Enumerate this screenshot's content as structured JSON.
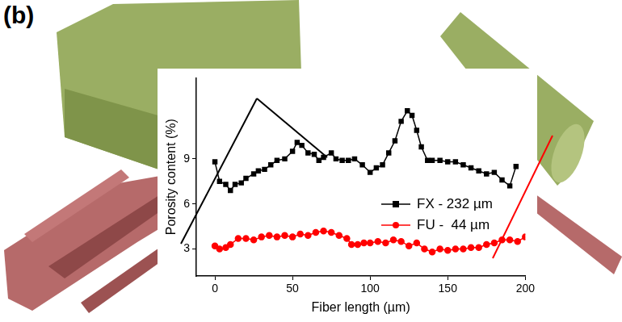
{
  "chart_data": {
    "type": "line",
    "title": "(b)",
    "x_label": "Fiber length (µm)",
    "y_label": "Porosity content (%)",
    "xlim": [
      -12,
      200
    ],
    "xticks": [
      0,
      50,
      100,
      150,
      200
    ],
    "ylim": [
      1.2,
      14.4
    ],
    "yticks": [
      3,
      6,
      9
    ],
    "grid": false,
    "legend": "right",
    "series": [
      {
        "name": "FX - 232 µm",
        "color": "#000000",
        "marker": "square",
        "line_style": "solid",
        "x": [
          0,
          3,
          7,
          10,
          13,
          17,
          20,
          25,
          28,
          32,
          36,
          40,
          45,
          50,
          53,
          56,
          60,
          64,
          67,
          70,
          75,
          78,
          82,
          86,
          90,
          95,
          100,
          104,
          108,
          112,
          116,
          120,
          124,
          127,
          130,
          133,
          137,
          140,
          145,
          150,
          155,
          160,
          165,
          170,
          175,
          180,
          185,
          190,
          194
        ],
        "values": [
          8.8,
          7.5,
          7.3,
          6.9,
          7.3,
          7.4,
          7.7,
          8.0,
          8.2,
          8.3,
          8.6,
          8.9,
          9.0,
          9.5,
          10.1,
          9.9,
          9.4,
          9.3,
          8.9,
          9.1,
          9.4,
          9.0,
          8.9,
          8.9,
          9.0,
          8.6,
          8.1,
          8.4,
          8.6,
          9.4,
          10.2,
          11.5,
          12.2,
          11.9,
          10.9,
          9.8,
          8.9,
          8.9,
          8.9,
          8.8,
          8.8,
          8.6,
          8.4,
          8.2,
          8.0,
          8.1,
          7.6,
          7.2,
          8.5
        ]
      },
      {
        "name": "FU -  44 µm",
        "color": "#ff0000",
        "marker": "circle",
        "line_style": "solid",
        "x": [
          0,
          3,
          7,
          10,
          15,
          20,
          25,
          30,
          35,
          40,
          45,
          50,
          55,
          60,
          65,
          70,
          75,
          80,
          85,
          88,
          92,
          96,
          100,
          105,
          110,
          115,
          120,
          125,
          130,
          135,
          140,
          145,
          150,
          155,
          160,
          165,
          170,
          175,
          180,
          185,
          190,
          195,
          200
        ],
        "values": [
          3.2,
          3.0,
          3.1,
          3.3,
          3.7,
          3.7,
          3.6,
          3.8,
          3.9,
          3.8,
          3.9,
          3.8,
          4.0,
          3.9,
          4.1,
          4.2,
          4.1,
          3.9,
          3.7,
          3.3,
          3.3,
          3.4,
          3.4,
          3.5,
          3.4,
          3.6,
          3.5,
          3.2,
          3.4,
          3.0,
          2.8,
          3.0,
          2.9,
          3.0,
          3.0,
          3.1,
          3.1,
          3.3,
          3.4,
          3.6,
          3.6,
          3.5,
          3.8
        ]
      }
    ]
  }
}
